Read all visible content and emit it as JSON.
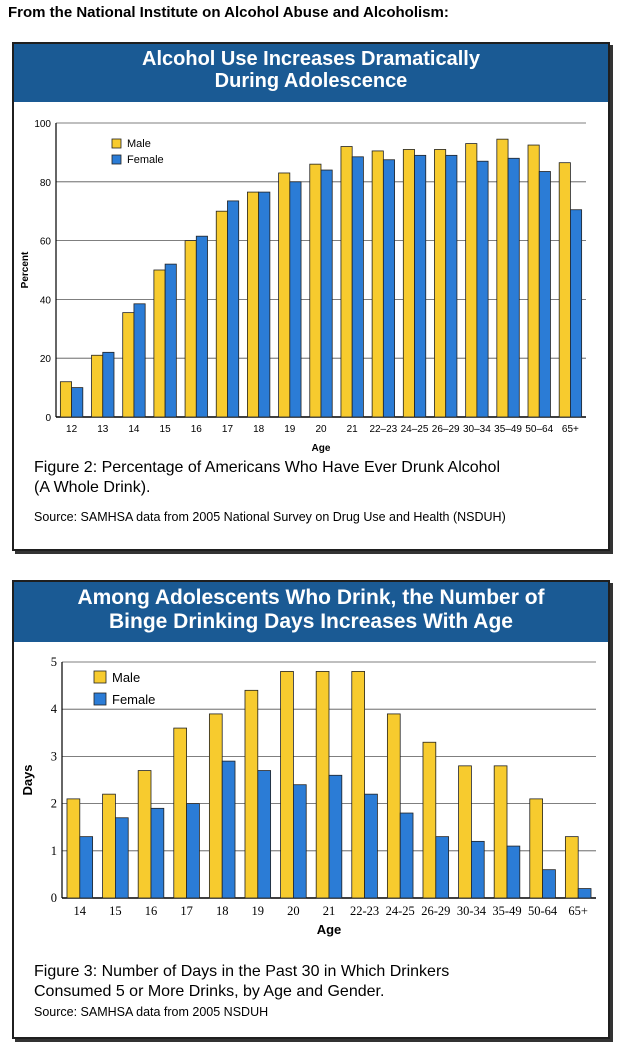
{
  "header": "From the National Institute on Alcohol Abuse and Alcoholism:",
  "colors": {
    "male": "#f7cb2e",
    "female": "#2b7cd6",
    "title_bar": "#1a5a94"
  },
  "chart_data": [
    {
      "type": "bar",
      "title_line1": "Alcohol Use Increases Dramatically",
      "title_line2": "During Adolescence",
      "xlabel": "Age",
      "ylabel": "Percent",
      "ylim": [
        0,
        100
      ],
      "yticks": [
        0,
        20,
        40,
        60,
        80,
        100
      ],
      "grid": true,
      "legend_position": "top-left",
      "categories": [
        "12",
        "13",
        "14",
        "15",
        "16",
        "17",
        "18",
        "19",
        "20",
        "21",
        "22–23",
        "24–25",
        "26–29",
        "30–34",
        "35–49",
        "50–64",
        "65+"
      ],
      "series": [
        {
          "name": "Male",
          "values": [
            12,
            21,
            35.5,
            50,
            60,
            70,
            76.5,
            83,
            86,
            92,
            90.5,
            91,
            91,
            93,
            94.5,
            92.5,
            86.5
          ]
        },
        {
          "name": "Female",
          "values": [
            10,
            22,
            38.5,
            52,
            61.5,
            73.5,
            76.5,
            80,
            84,
            88.5,
            87.5,
            89,
            89,
            87,
            88,
            83.5,
            70.5
          ]
        }
      ],
      "caption_line1": "Figure 2: Percentage of Americans Who Have Ever Drunk Alcohol",
      "caption_line2": "(A Whole Drink).",
      "source": "Source: SAMHSA data from 2005 National Survey on Drug Use and Health (NSDUH)"
    },
    {
      "type": "bar",
      "title_line1": "Among Adolescents Who Drink, the Number of",
      "title_line2": "Binge Drinking Days Increases With Age",
      "xlabel": "Age",
      "ylabel": "Days",
      "ylim": [
        0,
        5
      ],
      "yticks": [
        0,
        1,
        2,
        3,
        4,
        5
      ],
      "grid": true,
      "legend_position": "top-left",
      "categories": [
        "14",
        "15",
        "16",
        "17",
        "18",
        "19",
        "20",
        "21",
        "22-23",
        "24-25",
        "26-29",
        "30-34",
        "35-49",
        "50-64",
        "65+"
      ],
      "series": [
        {
          "name": "Male",
          "values": [
            2.1,
            2.2,
            2.7,
            3.6,
            3.9,
            4.4,
            4.8,
            4.8,
            4.8,
            3.9,
            3.3,
            2.8,
            2.8,
            2.1,
            1.3
          ]
        },
        {
          "name": "Female",
          "values": [
            1.3,
            1.7,
            1.9,
            2.0,
            2.9,
            2.7,
            2.4,
            2.6,
            2.2,
            1.8,
            1.3,
            1.2,
            1.1,
            0.6,
            0.2
          ]
        }
      ],
      "caption_line1": "Figure 3: Number of Days in the Past 30 in Which Drinkers",
      "caption_line2": "Consumed 5 or More Drinks, by Age and Gender.",
      "source": "Source: SAMHSA data from 2005 NSDUH"
    }
  ]
}
